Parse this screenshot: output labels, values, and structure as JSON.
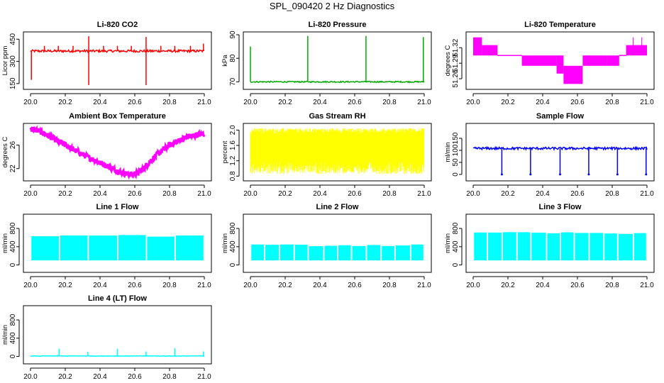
{
  "figure_title": "SPL_090420  2 Hz Diagnostics",
  "chart_data": [
    {
      "type": "line",
      "title": "Li-820 CO2",
      "xlabel": "",
      "ylabel": "Licor ppm",
      "xlim": [
        20.0,
        21.0
      ],
      "ylim": [
        130,
        480
      ],
      "x_ticks": [
        "20.0",
        "20.2",
        "20.4",
        "20.6",
        "20.8",
        "21.0"
      ],
      "y_ticks": [
        "150",
        "300",
        "450"
      ],
      "color": "#ff0000",
      "series": [
        {
          "baseline": 370,
          "noise": 8,
          "spikes": [
            {
              "x": 20.005,
              "y": 175
            },
            {
              "x": 20.08,
              "y": 405
            },
            {
              "x": 20.16,
              "y": 405
            },
            {
              "x": 20.245,
              "y": 405
            },
            {
              "x": 20.335,
              "y": 470
            },
            {
              "x": 20.335,
              "y": 140
            },
            {
              "x": 20.42,
              "y": 405
            },
            {
              "x": 20.5,
              "y": 405
            },
            {
              "x": 20.58,
              "y": 405
            },
            {
              "x": 20.665,
              "y": 465
            },
            {
              "x": 20.665,
              "y": 140
            },
            {
              "x": 20.75,
              "y": 405
            },
            {
              "x": 20.83,
              "y": 405
            },
            {
              "x": 20.92,
              "y": 405
            },
            {
              "x": 20.995,
              "y": 420
            }
          ]
        }
      ]
    },
    {
      "type": "line",
      "title": "Li-820 Pressure",
      "ylabel": "kPa",
      "xlim": [
        20.0,
        21.0
      ],
      "ylim": [
        68,
        90
      ],
      "x_ticks": [
        "20.0",
        "20.2",
        "20.4",
        "20.6",
        "20.8",
        "21.0"
      ],
      "y_ticks": [
        "70",
        "80",
        "90"
      ],
      "color": "#00aa00",
      "series": [
        {
          "baseline": 70,
          "noise": 0.25,
          "spikes": [
            {
              "x": 20.0,
              "y": 85
            },
            {
              "x": 20.33,
              "y": 89.5
            },
            {
              "x": 20.665,
              "y": 89.5
            },
            {
              "x": 20.995,
              "y": 89
            }
          ]
        }
      ]
    },
    {
      "type": "line",
      "title": "Li-820 Temperature",
      "ylabel": "degrees C",
      "xlim": [
        20.0,
        21.0
      ],
      "ylim": [
        51.245,
        51.345
      ],
      "x_ticks": [
        "20.0",
        "20.2",
        "20.4",
        "20.6",
        "20.8",
        "21.0"
      ],
      "y_ticks": [
        "51.26",
        "51.29",
        "51.32"
      ],
      "color": "#ff00ff",
      "series": [
        {
          "levels": [
            {
              "from": 20.0,
              "to": 20.05,
              "low": 51.305,
              "high": 51.34
            },
            {
              "from": 20.05,
              "to": 20.14,
              "low": 51.305,
              "high": 51.325
            },
            {
              "from": 20.14,
              "to": 20.28,
              "low": 51.305,
              "high": 51.305
            },
            {
              "from": 20.28,
              "to": 20.48,
              "low": 51.285,
              "high": 51.305
            },
            {
              "from": 20.48,
              "to": 20.52,
              "low": 51.27,
              "high": 51.305
            },
            {
              "from": 20.52,
              "to": 20.63,
              "low": 51.25,
              "high": 51.285
            },
            {
              "from": 20.63,
              "to": 20.77,
              "low": 51.285,
              "high": 51.305
            },
            {
              "from": 20.77,
              "to": 20.84,
              "low": 51.285,
              "high": 51.305
            },
            {
              "from": 20.84,
              "to": 20.88,
              "low": 51.305,
              "high": 51.305
            },
            {
              "from": 20.88,
              "to": 21.0,
              "low": 51.305,
              "high": 51.325
            }
          ]
        }
      ]
    },
    {
      "type": "line",
      "title": "Ambient Box Temperature",
      "ylabel": "degrees C",
      "xlim": [
        20.0,
        21.0
      ],
      "ylim": [
        20.4,
        29.2
      ],
      "x_ticks": [
        "20.0",
        "20.2",
        "20.4",
        "20.6",
        "20.8",
        "21.0"
      ],
      "y_ticks": [
        "22",
        "26"
      ],
      "color": "#ff00ff",
      "series": [
        {
          "x": [
            20.0,
            20.05,
            20.1,
            20.2,
            20.3,
            20.4,
            20.5,
            20.55,
            20.58,
            20.62,
            20.66,
            20.72,
            20.8,
            20.9,
            21.0
          ],
          "y": [
            28.8,
            28.4,
            27.6,
            26.0,
            24.4,
            23.0,
            21.6,
            21.1,
            21.0,
            21.3,
            22.3,
            24.2,
            26.0,
            27.4,
            28.0
          ],
          "band": 0.5
        }
      ]
    },
    {
      "type": "line",
      "title": "Gas Stream RH",
      "ylabel": "percent",
      "xlim": [
        20.0,
        21.0
      ],
      "ylim": [
        0.75,
        2.1
      ],
      "x_ticks": [
        "20.0",
        "20.2",
        "20.4",
        "20.6",
        "20.8",
        "21.0"
      ],
      "y_ticks": [
        "0.8",
        "1.2",
        "1.6",
        "2.0"
      ],
      "color": "#ffff00",
      "series": [
        {
          "low": 0.85,
          "high": 2.05,
          "typical_low": 1.2,
          "typical_high": 1.9
        }
      ]
    },
    {
      "type": "line",
      "title": "Sample Flow",
      "ylabel": "ml/min",
      "xlim": [
        20.0,
        21.0
      ],
      "ylim": [
        -15,
        200
      ],
      "x_ticks": [
        "20.0",
        "20.2",
        "20.4",
        "20.6",
        "20.8",
        "21.0"
      ],
      "y_ticks": [
        "0",
        "50",
        "100",
        "150"
      ],
      "color": "#0000ff",
      "series": [
        {
          "baseline": 108,
          "noise": 5,
          "dips": [
            20.165,
            20.33,
            20.5,
            20.665,
            20.83,
            20.995
          ],
          "dip_y": 0
        }
      ]
    },
    {
      "type": "line",
      "title": "Line 1 Flow",
      "ylabel": "ml/min",
      "xlim": [
        20.0,
        21.0
      ],
      "ylim": [
        -100,
        1050
      ],
      "x_ticks": [
        "20.0",
        "20.2",
        "20.4",
        "20.6",
        "20.8",
        "21.0"
      ],
      "y_ticks": [
        "0",
        "400",
        "800"
      ],
      "color": "#00ffff",
      "series": [
        {
          "low": 100,
          "high": 640,
          "gaps": [
            20.165,
            20.33,
            20.5,
            20.665,
            20.83
          ]
        }
      ]
    },
    {
      "type": "line",
      "title": "Line 2 Flow",
      "ylabel": "ml/min",
      "xlim": [
        20.0,
        21.0
      ],
      "ylim": [
        -100,
        1050
      ],
      "x_ticks": [
        "20.0",
        "20.2",
        "20.4",
        "20.6",
        "20.8",
        "21.0"
      ],
      "y_ticks": [
        "0",
        "400",
        "800"
      ],
      "color": "#00ffff",
      "series": [
        {
          "low": 100,
          "high": 430,
          "gaps": [
            20.08,
            20.165,
            20.25,
            20.33,
            20.42,
            20.5,
            20.58,
            20.665,
            20.75,
            20.83,
            20.92
          ]
        }
      ]
    },
    {
      "type": "line",
      "title": "Line 3 Flow",
      "ylabel": "ml/min",
      "xlim": [
        20.0,
        21.0
      ],
      "ylim": [
        -100,
        1050
      ],
      "x_ticks": [
        "20.0",
        "20.2",
        "20.4",
        "20.6",
        "20.8",
        "21.0"
      ],
      "y_ticks": [
        "0",
        "400",
        "800"
      ],
      "color": "#00ffff",
      "series": [
        {
          "low": 100,
          "high": 700,
          "gaps": [
            20.08,
            20.165,
            20.25,
            20.33,
            20.42,
            20.5,
            20.58,
            20.665,
            20.75,
            20.83,
            20.92
          ]
        }
      ]
    },
    {
      "type": "line",
      "title": "Line 4 (LT) Flow",
      "ylabel": "ml/min",
      "xlim": [
        20.0,
        21.0
      ],
      "ylim": [
        -100,
        1050
      ],
      "x_ticks": [
        "20.0",
        "20.2",
        "20.4",
        "20.6",
        "20.8",
        "21.0"
      ],
      "y_ticks": [
        "0",
        "400",
        "800"
      ],
      "color": "#00ffff",
      "series": [
        {
          "baseline": 10,
          "noise": 6,
          "spikes": [
            {
              "x": 20.165,
              "y": 170
            },
            {
              "x": 20.33,
              "y": 100
            },
            {
              "x": 20.5,
              "y": 170
            },
            {
              "x": 20.665,
              "y": 110
            },
            {
              "x": 20.83,
              "y": 180
            },
            {
              "x": 20.995,
              "y": 110
            }
          ]
        }
      ]
    }
  ]
}
